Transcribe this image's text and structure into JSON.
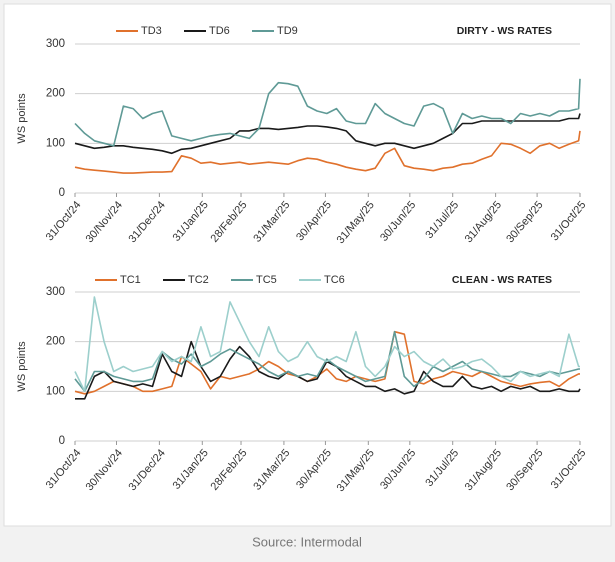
{
  "chart_data": [
    {
      "type": "line",
      "title": "DIRTY - WS RATES",
      "y_label": "WS points",
      "x": [
        "31/Oct/24",
        "07/Nov/24",
        "14/Nov/24",
        "21/Nov/24",
        "28/Nov/24",
        "05/Dec/24",
        "12/Dec/24",
        "19/Dec/24",
        "26/Dec/24",
        "02/Jan/25",
        "09/Jan/25",
        "16/Jan/25",
        "23/Jan/25",
        "30/Jan/25",
        "06/Feb/25",
        "13/Feb/25",
        "20/Feb/25",
        "27/Feb/25",
        "06/Mar/25",
        "13/Mar/25",
        "20/Mar/25",
        "27/Mar/25",
        "03/Apr/25",
        "10/Apr/25",
        "17/Apr/25",
        "24/Apr/25",
        "01/May/25",
        "08/May/25",
        "15/May/25",
        "22/May/25",
        "29/May/25",
        "05/Jun/25",
        "12/Jun/25",
        "19/Jun/25",
        "26/Jun/25",
        "03/Jul/25",
        "10/Jul/25",
        "17/Jul/25",
        "24/Jul/25",
        "31/Jul/25",
        "07/Aug/25",
        "14/Aug/25",
        "21/Aug/25",
        "28/Aug/25",
        "04/Sep/25",
        "11/Sep/25",
        "18/Sep/25",
        "25/Sep/25",
        "02/Oct/25",
        "09/Oct/25",
        "16/Oct/25",
        "23/Oct/25",
        "30/Oct/25",
        "31/Oct/25"
      ],
      "xlim": [
        "31/Oct/24",
        "31/Oct/25"
      ],
      "xticks": [
        "31/Oct/24",
        "30/Nov/24",
        "31/Dec/24",
        "31/Jan/25",
        "28/Feb/25",
        "31/Mar/25",
        "30/Apr/25",
        "31/May/25",
        "30/Jun/25",
        "31/Jul/25",
        "31/Aug/25",
        "30/Sep/25",
        "31/Oct/25"
      ],
      "ylim": [
        0,
        300
      ],
      "yticks": [
        0,
        100,
        200,
        300
      ],
      "grid": true,
      "series": [
        {
          "name": "TD3",
          "color": "#e0712c",
          "values": [
            52,
            48,
            46,
            44,
            42,
            40,
            40,
            41,
            42,
            42,
            43,
            75,
            70,
            60,
            62,
            58,
            60,
            62,
            58,
            60,
            62,
            60,
            58,
            65,
            70,
            68,
            62,
            58,
            52,
            48,
            45,
            50,
            80,
            90,
            55,
            50,
            48,
            45,
            50,
            52,
            58,
            60,
            68,
            75,
            100,
            98,
            90,
            80,
            95,
            100,
            90,
            98,
            105,
            125
          ]
        },
        {
          "name": "TD6",
          "color": "#1a1a1a",
          "values": [
            100,
            95,
            90,
            92,
            95,
            95,
            92,
            90,
            88,
            85,
            80,
            88,
            90,
            95,
            100,
            105,
            110,
            125,
            125,
            130,
            130,
            128,
            130,
            132,
            135,
            135,
            133,
            130,
            125,
            105,
            100,
            95,
            100,
            100,
            95,
            90,
            95,
            100,
            110,
            120,
            140,
            140,
            145,
            145,
            145,
            145,
            145,
            145,
            145,
            145,
            145,
            150,
            150,
            160
          ]
        },
        {
          "name": "TD9",
          "color": "#5f9a96",
          "values": [
            140,
            120,
            105,
            100,
            95,
            175,
            170,
            150,
            160,
            165,
            115,
            110,
            105,
            110,
            115,
            118,
            120,
            115,
            110,
            130,
            200,
            222,
            220,
            215,
            175,
            165,
            160,
            170,
            145,
            140,
            140,
            180,
            160,
            150,
            140,
            135,
            175,
            180,
            170,
            120,
            160,
            150,
            155,
            150,
            150,
            140,
            160,
            155,
            160,
            155,
            165,
            165,
            170,
            230
          ]
        }
      ]
    },
    {
      "type": "line",
      "title": "CLEAN - WS RATES",
      "y_label": "WS points",
      "x": [
        "31/Oct/24",
        "07/Nov/24",
        "14/Nov/24",
        "21/Nov/24",
        "28/Nov/24",
        "05/Dec/24",
        "12/Dec/24",
        "19/Dec/24",
        "26/Dec/24",
        "02/Jan/25",
        "09/Jan/25",
        "16/Jan/25",
        "23/Jan/25",
        "30/Jan/25",
        "06/Feb/25",
        "13/Feb/25",
        "20/Feb/25",
        "27/Feb/25",
        "06/Mar/25",
        "13/Mar/25",
        "20/Mar/25",
        "27/Mar/25",
        "03/Apr/25",
        "10/Apr/25",
        "17/Apr/25",
        "24/Apr/25",
        "01/May/25",
        "08/May/25",
        "15/May/25",
        "22/May/25",
        "29/May/25",
        "05/Jun/25",
        "12/Jun/25",
        "19/Jun/25",
        "26/Jun/25",
        "03/Jul/25",
        "10/Jul/25",
        "17/Jul/25",
        "24/Jul/25",
        "31/Jul/25",
        "07/Aug/25",
        "14/Aug/25",
        "21/Aug/25",
        "28/Aug/25",
        "04/Sep/25",
        "11/Sep/25",
        "18/Sep/25",
        "25/Sep/25",
        "02/Oct/25",
        "09/Oct/25",
        "16/Oct/25",
        "23/Oct/25",
        "30/Oct/25",
        "31/Oct/25"
      ],
      "xlim": [
        "31/Oct/24",
        "31/Oct/25"
      ],
      "xticks": [
        "31/Oct/24",
        "30/Nov/24",
        "31/Dec/24",
        "31/Jan/25",
        "28/Feb/25",
        "31/Mar/25",
        "30/Apr/25",
        "31/May/25",
        "30/Jun/25",
        "31/Jul/25",
        "31/Aug/25",
        "30/Sep/25",
        "31/Oct/25"
      ],
      "ylim": [
        0,
        300
      ],
      "yticks": [
        0,
        100,
        200,
        300
      ],
      "grid": true,
      "series": [
        {
          "name": "TC1",
          "color": "#e0712c",
          "values": [
            100,
            95,
            100,
            110,
            120,
            115,
            110,
            100,
            100,
            105,
            110,
            170,
            155,
            140,
            105,
            130,
            125,
            130,
            135,
            145,
            160,
            150,
            135,
            130,
            120,
            130,
            145,
            125,
            120,
            130,
            125,
            120,
            125,
            220,
            215,
            120,
            115,
            125,
            130,
            140,
            135,
            130,
            140,
            130,
            120,
            115,
            110,
            115,
            118,
            120,
            110,
            125,
            135,
            135
          ]
        },
        {
          "name": "TC2",
          "color": "#1a1a1a",
          "values": [
            85,
            85,
            130,
            140,
            120,
            115,
            110,
            115,
            110,
            175,
            140,
            130,
            200,
            150,
            120,
            130,
            165,
            190,
            170,
            140,
            130,
            125,
            140,
            130,
            120,
            125,
            160,
            150,
            130,
            120,
            110,
            110,
            100,
            105,
            95,
            100,
            140,
            120,
            110,
            110,
            130,
            110,
            105,
            110,
            100,
            110,
            105,
            110,
            100,
            100,
            105,
            100,
            100,
            105
          ]
        },
        {
          "name": "TC5",
          "color": "#5f9a96",
          "values": [
            125,
            100,
            140,
            140,
            130,
            125,
            120,
            120,
            125,
            180,
            165,
            155,
            175,
            150,
            160,
            175,
            185,
            175,
            165,
            155,
            140,
            130,
            140,
            130,
            135,
            130,
            165,
            150,
            140,
            130,
            120,
            125,
            130,
            220,
            130,
            110,
            125,
            150,
            140,
            150,
            160,
            145,
            140,
            135,
            130,
            130,
            140,
            135,
            130,
            140,
            135,
            140,
            145,
            145
          ]
        },
        {
          "name": "TC6",
          "color": "#9ccfcc",
          "values": [
            140,
            100,
            290,
            200,
            140,
            150,
            140,
            145,
            150,
            180,
            160,
            170,
            160,
            230,
            170,
            180,
            280,
            240,
            200,
            170,
            230,
            180,
            160,
            170,
            200,
            170,
            160,
            170,
            160,
            220,
            150,
            130,
            150,
            190,
            170,
            180,
            160,
            150,
            165,
            145,
            150,
            160,
            165,
            150,
            130,
            120,
            140,
            130,
            135,
            140,
            130,
            215,
            150,
            150
          ]
        }
      ]
    }
  ],
  "source": "Source: Intermodal"
}
